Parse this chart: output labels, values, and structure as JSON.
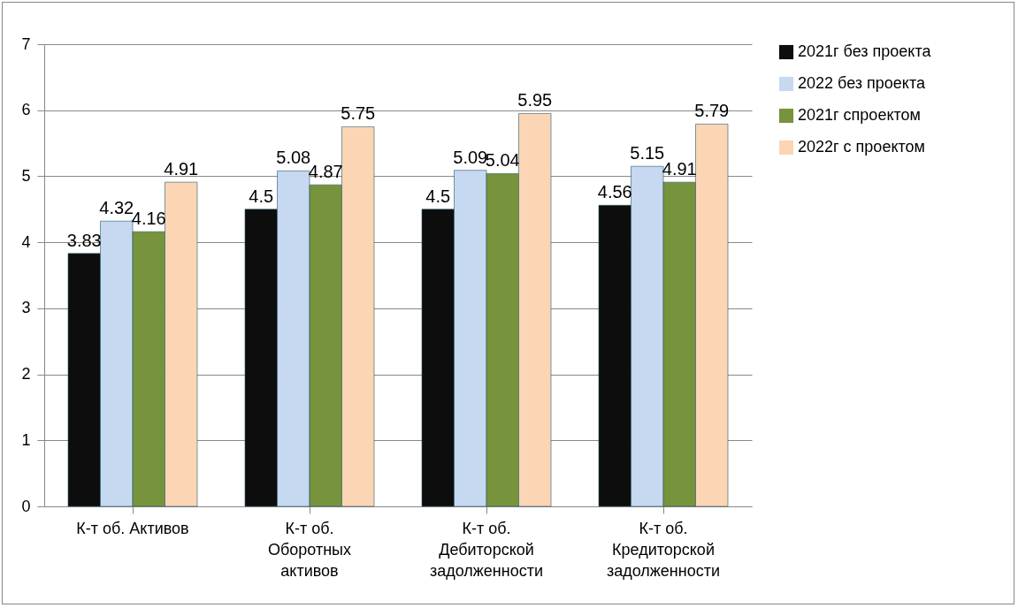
{
  "chart_data": {
    "type": "bar",
    "categories": [
      "К-т об. Активов",
      "К-т об.\nОборотных\nактивов",
      "К-т об.\nДебиторской\nзадолженности",
      "К-т об.\nКредиторской\nзадолженности"
    ],
    "series": [
      {
        "name": "2021г без проекта",
        "color": "#0d0d0d",
        "values": [
          3.83,
          4.5,
          4.5,
          4.56
        ]
      },
      {
        "name": "2022 без проекта",
        "color": "#c6d9f1",
        "values": [
          4.32,
          5.08,
          5.09,
          5.15
        ]
      },
      {
        "name": "2021г спроектом",
        "color": "#77933c",
        "values": [
          4.16,
          4.87,
          5.04,
          4.91
        ]
      },
      {
        "name": "2022г с проектом",
        "color": "#fcd5b5",
        "values": [
          4.91,
          5.75,
          5.95,
          5.79
        ]
      }
    ],
    "ylim": [
      0,
      7
    ],
    "yticks": [
      0,
      1,
      2,
      3,
      4,
      5,
      6,
      7
    ],
    "grid": "y",
    "legend": "right",
    "data_labels": true
  }
}
